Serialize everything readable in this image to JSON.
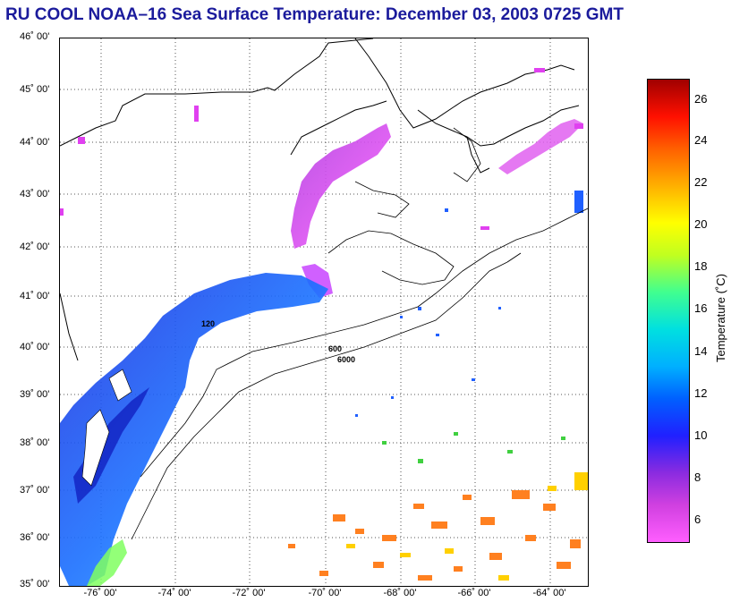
{
  "header": {
    "title": "RU COOL  NOAA–16  Sea Surface Temperature:  December 03, 2003 0725 GMT",
    "title_color": "#1b1b9c"
  },
  "map": {
    "region": "Mid-Atlantic Bight and Gulf of Maine",
    "lat_range": [
      35,
      46
    ],
    "lon_range": [
      -77,
      -63
    ],
    "grid": "dotted",
    "lat_labels": [
      "46˚ 00'",
      "45˚ 00'",
      "44˚ 00'",
      "43˚ 00'",
      "42˚ 00'",
      "41˚ 00'",
      "40˚ 00'",
      "39˚ 00'",
      "38˚ 00'",
      "37˚ 00'",
      "36˚ 00'",
      "35˚ 00'"
    ],
    "lon_labels": [
      "-76˚ 00'",
      "-74˚ 00'",
      "-72˚ 00'",
      "-70˚ 00'",
      "-68˚ 00'",
      "-66˚ 00'",
      "-64˚ 00'"
    ],
    "isobath_labels": [
      "120",
      "600",
      "6000"
    ]
  },
  "colorbar": {
    "title": "Temperature (˚C)",
    "range": [
      5,
      27
    ],
    "ticks": [
      "26",
      "24",
      "22",
      "20",
      "18",
      "16",
      "14",
      "12",
      "10",
      "8",
      "6"
    ],
    "colors": [
      "#ff5eff",
      "#d040e0",
      "#8a2be0",
      "#2020ff",
      "#0060ff",
      "#00b0ff",
      "#00e0e0",
      "#40ff90",
      "#c0ff20",
      "#ffff00",
      "#ffb000",
      "#ff6000",
      "#ff1000",
      "#a00000"
    ]
  }
}
